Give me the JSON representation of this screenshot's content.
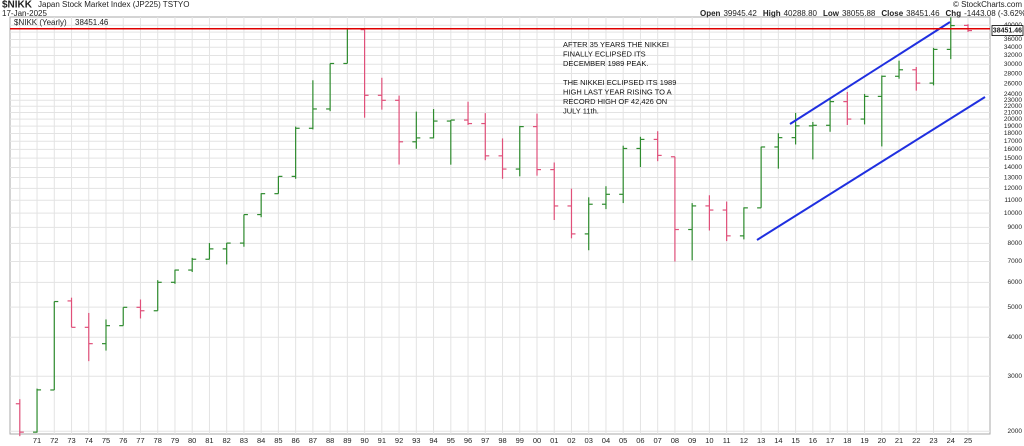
{
  "chart_data": {
    "type": "ohlc",
    "title": "$NIKK",
    "subtitle": "Japan Stock Market Index (JP225) TSTYO",
    "date": "17-Jan-2025",
    "credit": "© StockCharts.com",
    "quote": [
      {
        "label": "Open",
        "value": "39945.42"
      },
      {
        "label": "High",
        "value": "40288.80"
      },
      {
        "label": "Low",
        "value": "38055.88"
      },
      {
        "label": "Close",
        "value": "38451.46"
      },
      {
        "label": "Chg",
        "value": "-1443.08 (-3.62%)"
      }
    ],
    "legend": "$NIKK (Yearly)",
    "annotation": [
      [
        "AFTER 35 YEARS THE NIKKEI",
        "FINALLY ECLIPSED ITS",
        "DECEMBER 1989 PEAK."
      ],
      [
        "THE NIKKEI ECLIPSED ITS 1989",
        "HIGH LAST YEAR RISING TO A",
        "RECORD HIGH OF 42,426 ON",
        "JULY 11th."
      ]
    ],
    "categories": [
      null,
      "71",
      "72",
      "73",
      "74",
      "75",
      "76",
      "77",
      "78",
      "79",
      "80",
      "81",
      "82",
      "83",
      "84",
      "85",
      "86",
      "87",
      "88",
      "89",
      "90",
      "91",
      "92",
      "93",
      "94",
      "95",
      "96",
      "97",
      "98",
      "99",
      "00",
      "01",
      "02",
      "03",
      "04",
      "05",
      "06",
      "07",
      "08",
      "09",
      "10",
      "11",
      "12",
      "13",
      "14",
      "15",
      "16",
      "17",
      "18",
      "19",
      "20",
      "21",
      "22",
      "23",
      "24",
      "25"
    ],
    "open": [
      2450,
      1987,
      2712,
      5232,
      4306,
      3817,
      4359,
      4991,
      4866,
      6002,
      6570,
      7116,
      7681,
      8016,
      9893,
      11543,
      13113,
      18701,
      21564,
      30159,
      38713,
      23849,
      22984,
      16925,
      17417,
      19723,
      19868,
      19361,
      15259,
      13842,
      18934,
      13786,
      10543,
      8579,
      10677,
      11489,
      16111,
      17226,
      15156,
      8860,
      10546,
      10229,
      8455,
      10395,
      16291,
      17451,
      19034,
      19114,
      22765,
      20015,
      23657,
      27444,
      28792,
      26095,
      33464,
      39945.42
    ],
    "high": [
      2534,
      2740,
      5208,
      5359,
      4788,
      4564,
      4990,
      5287,
      6097,
      6590,
      7188,
      8019,
      8026,
      9893,
      11577,
      13129,
      18936,
      26646,
      30159,
      38957,
      38713,
      27146,
      23801,
      21148,
      21553,
      19868,
      22750,
      20910,
      17352,
      19036,
      20833,
      14529,
      11980,
      11238,
      12195,
      16445,
      17563,
      18300,
      15156,
      10767,
      11408,
      10891,
      10433,
      16320,
      18030,
      20952,
      19592,
      23382,
      24448,
      24091,
      27602,
      30795,
      29388,
      33853,
      42426,
      40288.8
    ],
    "low": [
      1929,
      1981,
      2712,
      4306,
      3355,
      3627,
      4359,
      4597,
      4867,
      5935,
      6476,
      7110,
      6849,
      7803,
      9703,
      11545,
      12881,
      18544,
      21217,
      30183,
      20221,
      21457,
      14309,
      16078,
      17370,
      14295,
      19161,
      14775,
      12880,
      13122,
      13182,
      9504,
      8303,
      7604,
      10299,
      10770,
      14046,
      14669,
      6995,
      7055,
      8796,
      8135,
      8238,
      10399,
      13885,
      16593,
      14864,
      18225,
      19156,
      19241,
      16358,
      26954,
      24681,
      25662,
      31156,
      38055.88
    ],
    "close": [
      1987,
      2714,
      5208,
      4306,
      3817,
      4359,
      4991,
      4866,
      6002,
      6570,
      7116,
      7681,
      8016,
      9893,
      11543,
      13113,
      18701,
      21564,
      30159,
      38916,
      23849,
      22984,
      16925,
      17417,
      19723,
      19868,
      19361,
      15259,
      13842,
      18934,
      13786,
      10543,
      8579,
      10677,
      11489,
      16111,
      17226,
      15308,
      8860,
      10546,
      10229,
      8455,
      10395,
      16291,
      17451,
      19034,
      19114,
      22765,
      20015,
      23657,
      27444,
      28792,
      26095,
      33464,
      39895,
      38451.46
    ],
    "up_color": "#2e8b2e",
    "down_color": "#e0507a",
    "peak_line_color": "#e00000",
    "ylim": [
      1960,
      42500
    ],
    "log_scale": true,
    "grid": true,
    "yticks": [
      2000,
      3000,
      4000,
      5000,
      6000,
      7000,
      8000,
      9000,
      10000,
      11000,
      12000,
      13000,
      14000,
      15000,
      16000,
      17000,
      18000,
      19000,
      20000,
      21000,
      22000,
      23000,
      24000,
      26000,
      28000,
      30000,
      32000,
      34000,
      36000,
      38000,
      40000
    ]
  }
}
